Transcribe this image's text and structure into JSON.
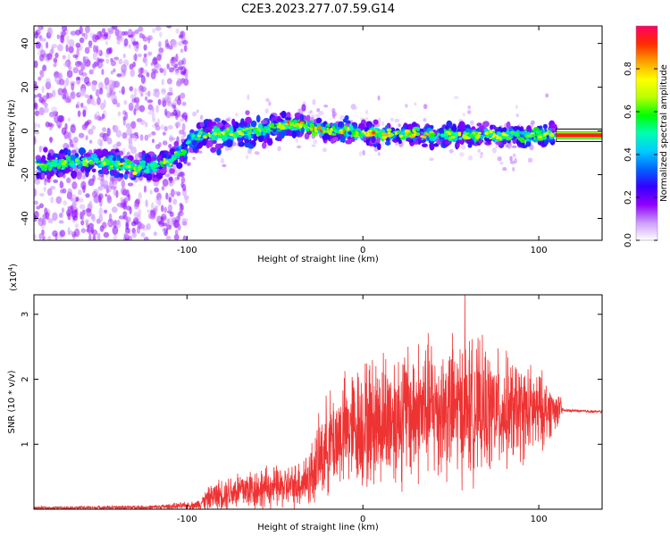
{
  "figure": {
    "title": "C2E3.2023.277.07.59.G14"
  },
  "chart_data": [
    {
      "type": "heatmap",
      "title": "",
      "xlabel": "Height of straight line (km)",
      "ylabel": "Frequency (Hz)",
      "xlim": [
        -187,
        136
      ],
      "ylim": [
        -50,
        48
      ],
      "xticks": [
        -100,
        0,
        100
      ],
      "yticks": [
        -40,
        -20,
        0,
        20,
        40
      ],
      "colorbar": {
        "label": "Normalized spectral amplitude",
        "range": [
          0,
          1
        ],
        "ticks": [
          0.0,
          0.2,
          0.4,
          0.6,
          0.8
        ],
        "colormap": [
          "#ffffff",
          "#cc99ff",
          "#8f00ff",
          "#3300ff",
          "#0066ff",
          "#00ccff",
          "#00ffb0",
          "#00ff00",
          "#b8ff00",
          "#ffff00",
          "#ffa000",
          "#ff2a00",
          "#ff0066"
        ]
      },
      "ridge": [
        {
          "x": -180,
          "y": -16
        },
        {
          "x": -170,
          "y": -15
        },
        {
          "x": -160,
          "y": -14
        },
        {
          "x": -150,
          "y": -14
        },
        {
          "x": -140,
          "y": -15
        },
        {
          "x": -130,
          "y": -17
        },
        {
          "x": -120,
          "y": -16
        },
        {
          "x": -110,
          "y": -14
        },
        {
          "x": -103,
          "y": -10
        },
        {
          "x": -98,
          "y": -4
        },
        {
          "x": -90,
          "y": -2
        },
        {
          "x": -80,
          "y": -1
        },
        {
          "x": -70,
          "y": -1
        },
        {
          "x": -60,
          "y": 0
        },
        {
          "x": -50,
          "y": 2
        },
        {
          "x": -40,
          "y": 3
        },
        {
          "x": -30,
          "y": 2
        },
        {
          "x": -20,
          "y": 0
        },
        {
          "x": -10,
          "y": 0
        },
        {
          "x": 0,
          "y": -1
        },
        {
          "x": 20,
          "y": -1
        },
        {
          "x": 40,
          "y": -2
        },
        {
          "x": 60,
          "y": -2
        },
        {
          "x": 80,
          "y": -2
        },
        {
          "x": 100,
          "y": -2
        },
        {
          "x": 110,
          "y": -2
        }
      ],
      "tone_line": {
        "x_start": 110,
        "x_end": 136,
        "y": -2,
        "amplitude": 0.95
      }
    },
    {
      "type": "line",
      "title": "",
      "xlabel": "Height of straight line (km)",
      "ylabel": "SNR (10 * v/v)",
      "y_multiplier": "(x10",
      "y_multiplier_exp": "4",
      "y_multiplier_close": ")",
      "xlim": [
        -187,
        136
      ],
      "ylim": [
        0,
        3.3
      ],
      "xticks": [
        -100,
        0,
        100
      ],
      "yticks": [
        1,
        2,
        3
      ],
      "color": "#ee3333",
      "envelope": [
        {
          "x": -187,
          "mean": 0.02,
          "spread": 0.02
        },
        {
          "x": -120,
          "mean": 0.03,
          "spread": 0.03
        },
        {
          "x": -95,
          "mean": 0.06,
          "spread": 0.06
        },
        {
          "x": -85,
          "mean": 0.2,
          "spread": 0.2
        },
        {
          "x": -70,
          "mean": 0.3,
          "spread": 0.3
        },
        {
          "x": -40,
          "mean": 0.35,
          "spread": 0.3
        },
        {
          "x": -30,
          "mean": 0.5,
          "spread": 0.45
        },
        {
          "x": -20,
          "mean": 1.0,
          "spread": 0.7
        },
        {
          "x": -10,
          "mean": 1.2,
          "spread": 0.8
        },
        {
          "x": 0,
          "mean": 1.3,
          "spread": 0.9
        },
        {
          "x": 20,
          "mean": 1.45,
          "spread": 1.0
        },
        {
          "x": 40,
          "mean": 1.55,
          "spread": 1.0
        },
        {
          "x": 60,
          "mean": 1.55,
          "spread": 1.0
        },
        {
          "x": 80,
          "mean": 1.5,
          "spread": 0.8
        },
        {
          "x": 100,
          "mean": 1.5,
          "spread": 0.6
        },
        {
          "x": 112,
          "mean": 1.55,
          "spread": 0.2
        },
        {
          "x": 114,
          "mean": 1.52,
          "spread": 0.02
        },
        {
          "x": 136,
          "mean": 1.5,
          "spread": 0.02
        }
      ],
      "peak": {
        "x": 58,
        "y": 3.3
      }
    }
  ]
}
